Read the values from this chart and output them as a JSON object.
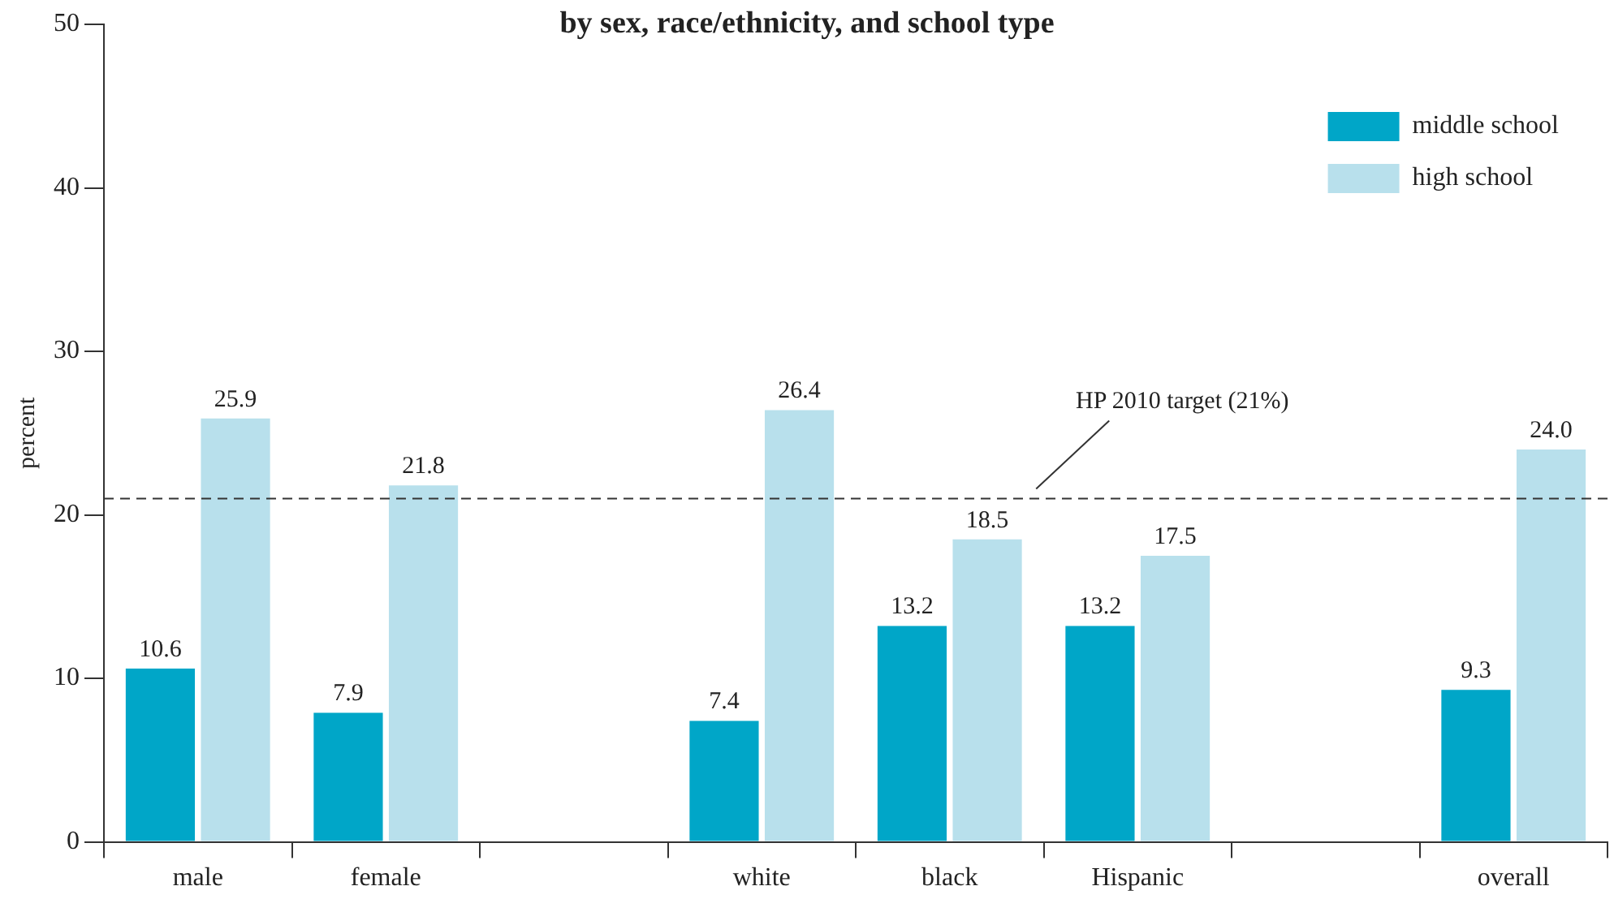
{
  "chart_data": {
    "type": "bar",
    "title": "by sex, race/ethnicity, and school type",
    "ylabel": "percent",
    "categories": [
      "male",
      "female",
      null,
      "white",
      "black",
      "Hispanic",
      null,
      "overall"
    ],
    "series": [
      {
        "name": "middle school",
        "color": "#00a6c8",
        "values": [
          10.6,
          7.9,
          null,
          7.4,
          13.2,
          13.2,
          null,
          9.3
        ],
        "value_labels": [
          "10.6",
          "7.9",
          null,
          "7.4",
          "13.2",
          "13.2",
          null,
          "9.3"
        ]
      },
      {
        "name": "high school",
        "color": "#b8e0ec",
        "values": [
          25.9,
          21.8,
          null,
          26.4,
          18.5,
          17.5,
          null,
          24.0
        ],
        "value_labels": [
          "25.9",
          "21.8",
          null,
          "26.4",
          "18.5",
          "17.5",
          null,
          "24.0"
        ]
      }
    ],
    "ylim": [
      0,
      50
    ],
    "yticks": [
      0,
      10,
      20,
      30,
      40,
      50
    ],
    "grid": false,
    "legend": "top right",
    "ref_lines": [
      {
        "axis": "y",
        "value": 21,
        "label": "HP 2010 target (21%)",
        "line_style": "dashed",
        "color": "#333333"
      }
    ]
  }
}
